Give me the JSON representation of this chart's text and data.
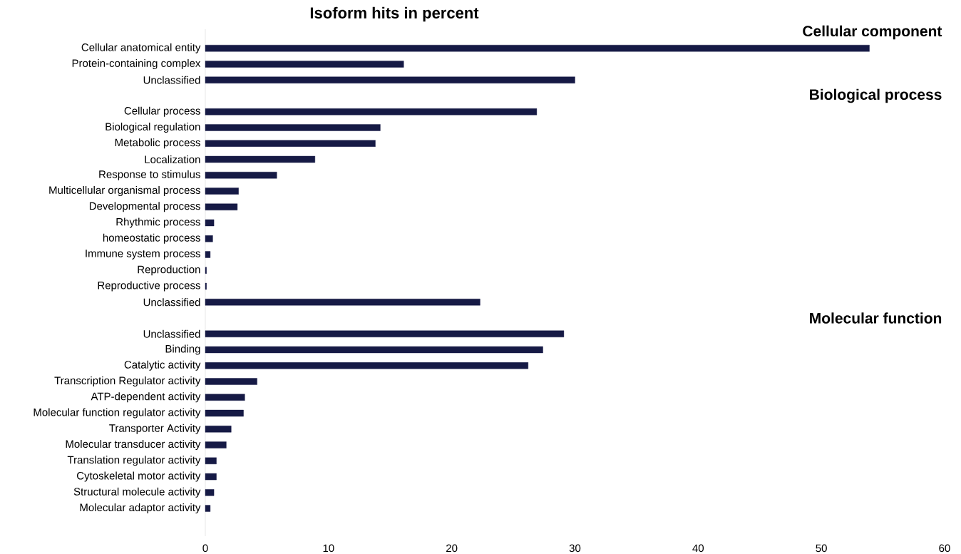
{
  "chart_data": {
    "type": "bar",
    "orientation": "horizontal",
    "title": "Isoform hits in percent",
    "categories": [
      "Cellular anatomical entity",
      "Protein-containing complex",
      "Unclassified",
      null,
      "Cellular process",
      "Biological regulation",
      "Metabolic process",
      "Localization",
      "Response to stimulus",
      "Multicellular organismal process",
      "Developmental process",
      "Rhythmic process",
      "homeostatic process",
      "Immune system process",
      "Reproduction",
      "Reproductive process",
      "Unclassified",
      null,
      "Unclassified",
      "Binding",
      "Catalytic activity",
      "Transcription Regulator activity",
      "ATP-dependent activity",
      "Molecular function regulator activity",
      "Transporter Activity",
      "Molecular transducer activity",
      "Translation regulator activity",
      "Cytoskeletal motor activity",
      "Structural molecule activity",
      "Molecular adaptor activity"
    ],
    "values": [
      53.9,
      16.1,
      30.0,
      null,
      26.9,
      14.2,
      13.8,
      8.9,
      5.8,
      2.7,
      2.6,
      0.7,
      0.6,
      0.4,
      0.1,
      0.1,
      22.3,
      null,
      29.1,
      27.4,
      26.2,
      4.2,
      3.2,
      3.1,
      2.1,
      1.7,
      0.9,
      0.9,
      0.7,
      0.4
    ],
    "color": "#161a45",
    "xlim": [
      0,
      60
    ],
    "xticks": [
      0,
      10,
      20,
      30,
      40,
      50,
      60
    ],
    "annotations": [
      "Cellular component",
      "Biological process",
      "Molecular function"
    ]
  }
}
